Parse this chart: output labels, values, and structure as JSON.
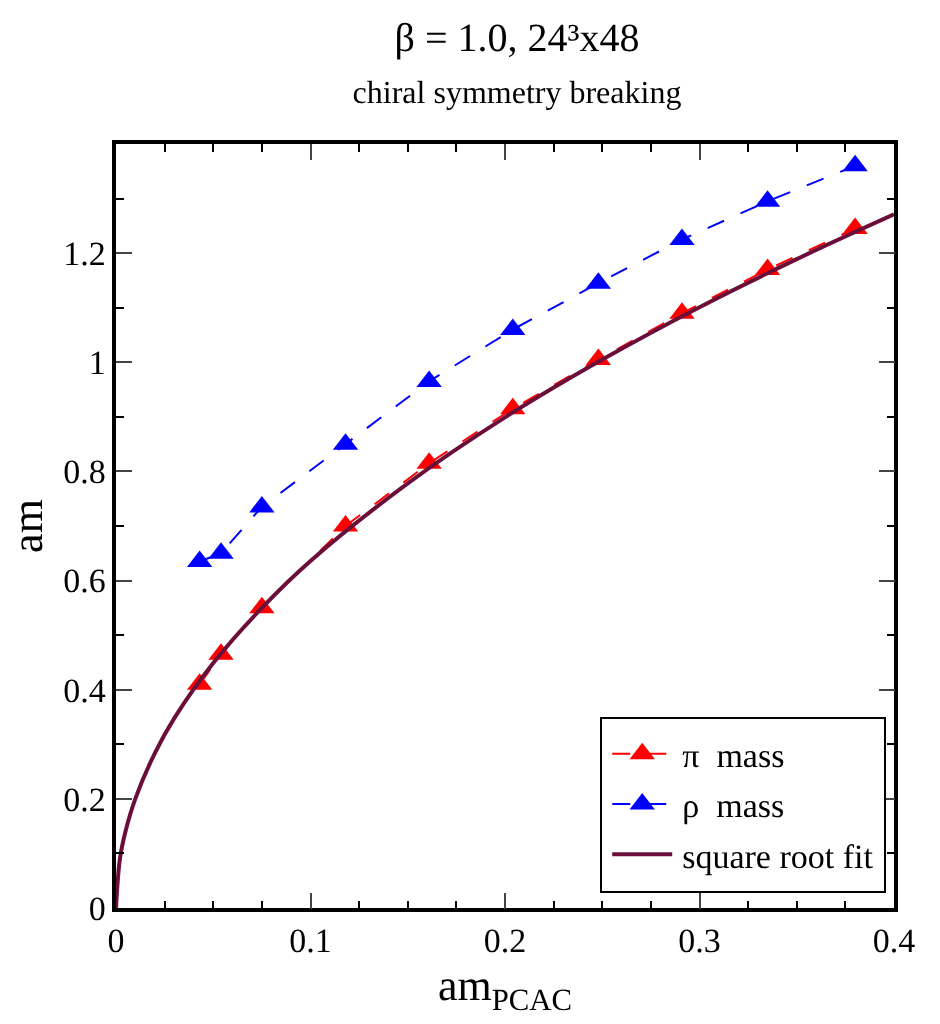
{
  "chart_data": {
    "type": "line",
    "title": "β = 1.0, 24³x48",
    "subtitle": "chiral symmetry breaking",
    "xlabel": "am$_{PCAC}$",
    "ylabel": "am",
    "x": [
      0.043,
      0.054,
      0.075,
      0.118,
      0.161,
      0.204,
      0.248,
      0.291,
      0.335,
      0.38
    ],
    "series": [
      {
        "name": "π  mass",
        "color": "#ff0000",
        "marker": "triangle",
        "line_style": "dashed",
        "values": [
          0.41,
          0.465,
          0.55,
          0.7,
          0.815,
          0.915,
          1.005,
          1.09,
          1.17,
          1.245
        ]
      },
      {
        "name": "ρ  mass",
        "color": "#0000ff",
        "marker": "triangle",
        "line_style": "dashed",
        "values": [
          0.635,
          0.65,
          0.735,
          0.85,
          0.965,
          1.06,
          1.145,
          1.225,
          1.295,
          1.36
        ]
      },
      {
        "name": "square root fit",
        "color": "#6b0f3a",
        "marker": "none",
        "line_style": "solid",
        "x": [
          0,
          0.002,
          0.005,
          0.01,
          0.02,
          0.03,
          0.05,
          0.075,
          0.1,
          0.15,
          0.2,
          0.25,
          0.3,
          0.35,
          0.4
        ],
        "values": [
          0,
          0.09,
          0.142,
          0.201,
          0.284,
          0.348,
          0.449,
          0.55,
          0.636,
          0.778,
          0.899,
          1.005,
          1.101,
          1.189,
          1.271
        ]
      }
    ],
    "xlim": [
      0,
      0.4
    ],
    "xticks": [
      0,
      0.1,
      0.2,
      0.3,
      0.4
    ],
    "ylim": [
      0,
      1.4
    ],
    "yticks": [
      0,
      0.2,
      0.4,
      0.6,
      0.8,
      1,
      1.2
    ],
    "legend": "bottom right"
  }
}
